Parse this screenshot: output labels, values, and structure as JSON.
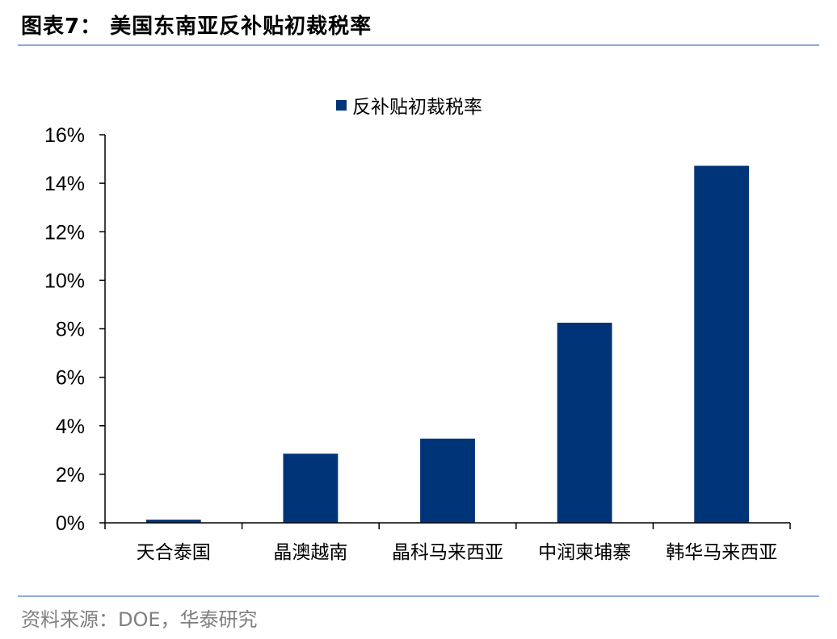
{
  "header": {
    "figure_title": "图表7：  美国东南亚反补贴初裁税率"
  },
  "footer": {
    "source": "资料来源：DOE，华泰研究"
  },
  "chart_data": {
    "type": "bar",
    "title": "",
    "xlabel": "",
    "ylabel": "",
    "categories": [
      "天合泰国",
      "晶澳越南",
      "晶科马来西亚",
      "中润柬埔寨",
      "韩华马来西亚"
    ],
    "series": [
      {
        "name": "反补贴初裁税率",
        "values": [
          0.0013,
          0.0285,
          0.0347,
          0.0825,
          0.1472
        ],
        "color": "#003478"
      }
    ],
    "ylim": [
      0,
      0.16
    ],
    "yticks": [
      0,
      0.02,
      0.04,
      0.06,
      0.08,
      0.1,
      0.12,
      0.14,
      0.16
    ],
    "ytick_labels": [
      "0%",
      "2%",
      "4%",
      "6%",
      "8%",
      "10%",
      "12%",
      "14%",
      "16%"
    ],
    "grid": false,
    "legend_position": "top-center"
  }
}
